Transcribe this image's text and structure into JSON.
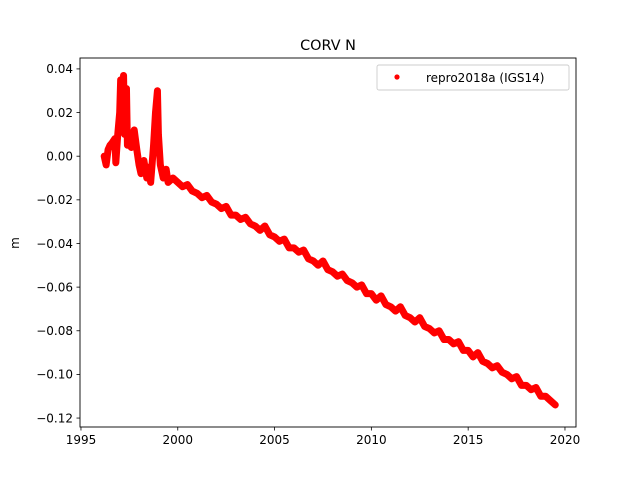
{
  "chart_data": {
    "type": "scatter",
    "title": "CORV N",
    "xlabel": "",
    "ylabel": "m",
    "xlim": [
      1994.95,
      2020.57
    ],
    "ylim": [
      -0.1241,
      0.045
    ],
    "xticks": [
      1995,
      2000,
      2005,
      2010,
      2015,
      2020
    ],
    "yticks": [
      -0.12,
      -0.1,
      -0.08,
      -0.06,
      -0.04,
      -0.02,
      0.0,
      0.02,
      0.04
    ],
    "ytick_labels": [
      "−0.12",
      "−0.10",
      "−0.08",
      "−0.06",
      "−0.04",
      "−0.02",
      "0.00",
      "0.02",
      "0.04"
    ],
    "grid": false,
    "legend": {
      "position": "top-right",
      "entries": [
        "repro2018a (IGS14)"
      ]
    },
    "series": [
      {
        "name": "repro2018a (IGS14)",
        "color": "#ff0000",
        "marker": "dot",
        "points": [
          [
            1996.2,
            0.0
          ],
          [
            1996.3,
            -0.004
          ],
          [
            1996.4,
            0.003
          ],
          [
            1996.5,
            0.005
          ],
          [
            1996.6,
            0.006
          ],
          [
            1996.75,
            0.008
          ],
          [
            1996.8,
            -0.003
          ],
          [
            1996.9,
            0.01
          ],
          [
            1997.0,
            0.02
          ],
          [
            1997.05,
            0.035
          ],
          [
            1997.1,
            0.03
          ],
          [
            1997.15,
            0.015
          ],
          [
            1997.2,
            0.037
          ],
          [
            1997.25,
            0.01
          ],
          [
            1997.3,
            0.028
          ],
          [
            1997.35,
            0.031
          ],
          [
            1997.4,
            0.005
          ],
          [
            1997.5,
            0.008
          ],
          [
            1997.6,
            0.004
          ],
          [
            1997.75,
            0.012
          ],
          [
            1997.9,
            0.002
          ],
          [
            1998.0,
            -0.004
          ],
          [
            1998.1,
            -0.008
          ],
          [
            1998.25,
            -0.002
          ],
          [
            1998.4,
            -0.01
          ],
          [
            1998.5,
            -0.005
          ],
          [
            1998.6,
            -0.012
          ],
          [
            1998.75,
            0.005
          ],
          [
            1998.85,
            0.02
          ],
          [
            1998.95,
            0.03
          ],
          [
            1999.0,
            0.01
          ],
          [
            1999.1,
            -0.004
          ],
          [
            1999.25,
            -0.01
          ],
          [
            1999.4,
            -0.006
          ],
          [
            1999.5,
            -0.012
          ],
          [
            1999.75,
            -0.01
          ],
          [
            2000.0,
            -0.012
          ],
          [
            2000.25,
            -0.014
          ],
          [
            2000.5,
            -0.013
          ],
          [
            2000.75,
            -0.016
          ],
          [
            2001.0,
            -0.017
          ],
          [
            2001.25,
            -0.019
          ],
          [
            2001.5,
            -0.018
          ],
          [
            2001.75,
            -0.021
          ],
          [
            2002.0,
            -0.022
          ],
          [
            2002.25,
            -0.024
          ],
          [
            2002.5,
            -0.023
          ],
          [
            2002.75,
            -0.027
          ],
          [
            2003.0,
            -0.027
          ],
          [
            2003.25,
            -0.029
          ],
          [
            2003.5,
            -0.028
          ],
          [
            2003.75,
            -0.031
          ],
          [
            2004.0,
            -0.032
          ],
          [
            2004.25,
            -0.034
          ],
          [
            2004.5,
            -0.032
          ],
          [
            2004.75,
            -0.036
          ],
          [
            2005.0,
            -0.037
          ],
          [
            2005.25,
            -0.039
          ],
          [
            2005.5,
            -0.038
          ],
          [
            2005.75,
            -0.042
          ],
          [
            2006.0,
            -0.042
          ],
          [
            2006.25,
            -0.044
          ],
          [
            2006.5,
            -0.043
          ],
          [
            2006.75,
            -0.047
          ],
          [
            2007.0,
            -0.048
          ],
          [
            2007.25,
            -0.05
          ],
          [
            2007.5,
            -0.048
          ],
          [
            2007.75,
            -0.052
          ],
          [
            2008.0,
            -0.053
          ],
          [
            2008.25,
            -0.055
          ],
          [
            2008.5,
            -0.054
          ],
          [
            2008.75,
            -0.057
          ],
          [
            2009.0,
            -0.058
          ],
          [
            2009.25,
            -0.06
          ],
          [
            2009.5,
            -0.059
          ],
          [
            2009.75,
            -0.063
          ],
          [
            2010.0,
            -0.063
          ],
          [
            2010.25,
            -0.066
          ],
          [
            2010.5,
            -0.064
          ],
          [
            2010.75,
            -0.068
          ],
          [
            2011.0,
            -0.069
          ],
          [
            2011.25,
            -0.071
          ],
          [
            2011.5,
            -0.069
          ],
          [
            2011.75,
            -0.073
          ],
          [
            2012.0,
            -0.074
          ],
          [
            2012.25,
            -0.076
          ],
          [
            2012.5,
            -0.074
          ],
          [
            2012.75,
            -0.078
          ],
          [
            2013.0,
            -0.079
          ],
          [
            2013.25,
            -0.081
          ],
          [
            2013.5,
            -0.08
          ],
          [
            2013.75,
            -0.084
          ],
          [
            2014.0,
            -0.084
          ],
          [
            2014.25,
            -0.086
          ],
          [
            2014.5,
            -0.085
          ],
          [
            2014.75,
            -0.089
          ],
          [
            2015.0,
            -0.089
          ],
          [
            2015.25,
            -0.092
          ],
          [
            2015.5,
            -0.09
          ],
          [
            2015.75,
            -0.094
          ],
          [
            2016.0,
            -0.095
          ],
          [
            2016.25,
            -0.097
          ],
          [
            2016.5,
            -0.096
          ],
          [
            2016.75,
            -0.099
          ],
          [
            2017.0,
            -0.1
          ],
          [
            2017.25,
            -0.102
          ],
          [
            2017.5,
            -0.101
          ],
          [
            2017.75,
            -0.105
          ],
          [
            2018.0,
            -0.105
          ],
          [
            2018.25,
            -0.107
          ],
          [
            2018.5,
            -0.106
          ],
          [
            2018.75,
            -0.11
          ],
          [
            2019.0,
            -0.11
          ],
          [
            2019.25,
            -0.112
          ],
          [
            2019.5,
            -0.114
          ]
        ]
      }
    ]
  }
}
